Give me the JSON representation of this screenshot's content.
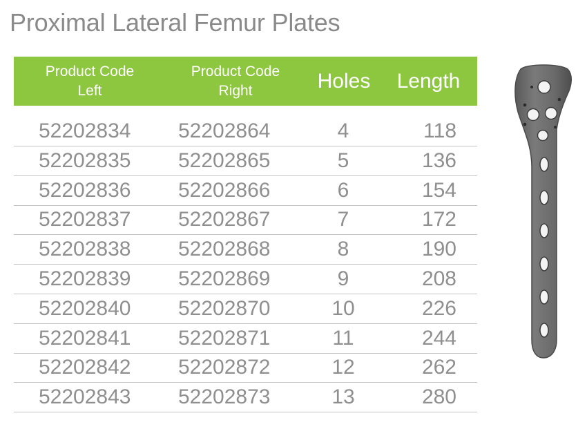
{
  "title": "Proximal Lateral Femur Plates",
  "table": {
    "headers": {
      "code_left_line1": "Product Code",
      "code_left_line2": "Left",
      "code_right_line1": "Product Code",
      "code_right_line2": "Right",
      "holes": "Holes",
      "length": "Length"
    },
    "rows": [
      {
        "left": "52202834",
        "right": "52202864",
        "holes": "4",
        "length": "118"
      },
      {
        "left": "52202835",
        "right": "52202865",
        "holes": "5",
        "length": "136"
      },
      {
        "left": "52202836",
        "right": "52202866",
        "holes": "6",
        "length": "154"
      },
      {
        "left": "52202837",
        "right": "52202867",
        "holes": "7",
        "length": "172"
      },
      {
        "left": "52202838",
        "right": "52202868",
        "holes": "8",
        "length": "190"
      },
      {
        "left": "52202839",
        "right": "52202869",
        "holes": "9",
        "length": "208"
      },
      {
        "left": "52202840",
        "right": "52202870",
        "holes": "10",
        "length": "226"
      },
      {
        "left": "52202841",
        "right": "52202871",
        "holes": "11",
        "length": "244"
      },
      {
        "left": "52202842",
        "right": "52202872",
        "holes": "12",
        "length": "262"
      },
      {
        "left": "52202843",
        "right": "52202873",
        "holes": "13",
        "length": "280"
      }
    ]
  },
  "colors": {
    "header_green": "#8dc63f",
    "title_gray": "#8a8a8a",
    "text_gray": "#8f8f8f",
    "rule_gray": "#c4c4c4",
    "plate_gray": "#6e6e6e"
  }
}
